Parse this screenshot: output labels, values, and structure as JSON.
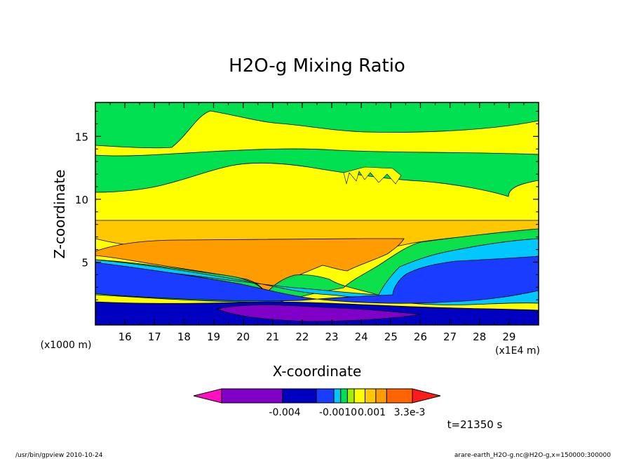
{
  "chart_data": {
    "type": "heatmap",
    "title": "H2O-g Mixing Ratio",
    "xlabel": "X-coordinate",
    "ylabel": "Z-coordinate",
    "x_unit": "(x1E4 m)",
    "y_unit": "(x1000 m)",
    "xlim": [
      15.0,
      30.0
    ],
    "ylim": [
      0.0,
      17.7
    ],
    "xticks": [
      16,
      17,
      18,
      19,
      20,
      21,
      22,
      23,
      24,
      25,
      26,
      27,
      28,
      29
    ],
    "yticks": [
      5,
      10,
      15
    ],
    "colorbar": {
      "labels": [
        "-0.004",
        "-0.0010",
        "0.001",
        "3.3e-3"
      ],
      "colors": [
        "#ff10c0",
        "#8000c8",
        "#0000c0",
        "#1a3cff",
        "#00c8ff",
        "#00e050",
        "#a0f000",
        "#ffff00",
        "#ffc800",
        "#ff9c00",
        "#ff6400",
        "#ff1a1a"
      ]
    },
    "bands": [
      {
        "region": "surface layer",
        "color": "#0000c0"
      },
      {
        "region": "near-surface minimum",
        "color": "#8000c8"
      },
      {
        "region": "lower moist layer",
        "color": "#1a3cff"
      },
      {
        "region": "cyan fringe",
        "color": "#00c8ff"
      },
      {
        "region": "green layer",
        "color": "#00e050"
      },
      {
        "region": "core",
        "color": "#ff9c00"
      },
      {
        "region": "mid layer",
        "color": "#ffc800"
      },
      {
        "region": "upper layer",
        "color": "#ffff00"
      },
      {
        "region": "upper green layer",
        "color": "#00e050"
      }
    ]
  },
  "annotations": {
    "time": "t=21350 s",
    "footer_left": "/usr/bin/gpview   2010-10-24",
    "footer_right": "arare-earth_H2O-g.nc@H2O-g,x=150000:300000"
  }
}
